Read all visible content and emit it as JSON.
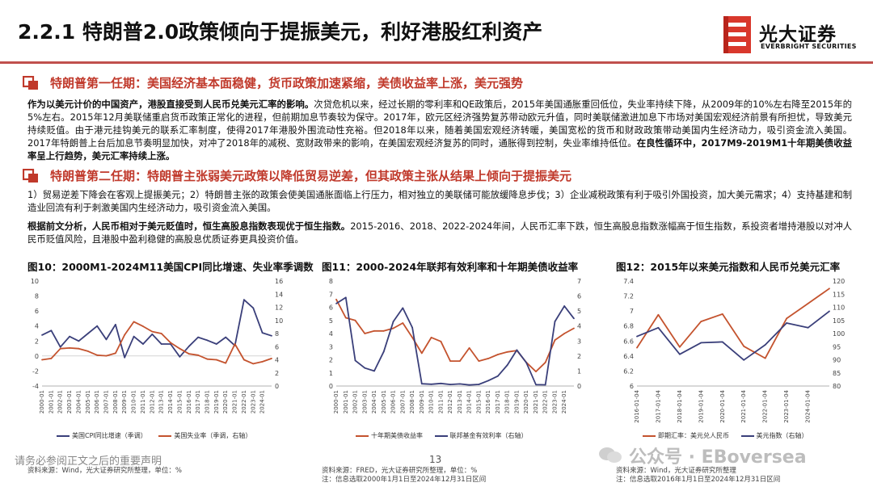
{
  "header": {
    "title": "2.2.1 特朗普2.0政策倾向于提振美元，利好港股红利资产",
    "logo_cn": "光大证券",
    "logo_en": "EVERBRIGHT SECURITIES"
  },
  "section1": {
    "heading": "特朗普第一任期：美国经济基本面稳健，货币政策加速紧缩，美债收益率上涨，美元强势",
    "para_bold1": "作为以美元计价的中国资产，港股直接受到人民币兑美元汇率的影响。",
    "para_text": "次贷危机以来，经过长期的零利率和QE政策后，2015年美国通胀重回低位，失业率持续下降，从2009年的10%左右降至2015年的5%左右。2015年12月美联储重启货币政策正常化的进程，但前期加息节奏较为保守。2017年，欧元区经济强势复苏带动欧元升值，同时美联储激进加息下市场对美国宏观经济前景有所担忧，导致美元持续贬值。由于港元挂钩美元的联系汇率制度，使得2017年港股外围流动性充裕。但2018年以来，随着美国宏观经济转暖，美国宽松的货币和财政政策带动美国内生经济动力，吸引资金流入美国。2017年特朗普上台后加息节奏明显加快，对冲了2018年的减税、宽财政带来的影响，在美国宏观经济复苏的同时，通胀得到控制，失业率维持低位。",
    "para_bold2": "在良性循环中，2017M9-2019M1十年期美债收益率呈上行趋势，美元汇率持续上涨。"
  },
  "section2": {
    "heading": "特朗普第二任期：特朗普主张弱美元政策以降低贸易逆差，但其政策主张从结果上倾向于提振美元",
    "para1": "1）贸易逆差下降会在客观上提振美元；2）特朗普主张的政策会使美国通胀面临上行压力，相对独立的美联储可能放缓降息步伐；3）企业减税政策有利于吸引外国投资，加大美元需求；4）支持基建和制造业回流有利于刺激美国内生经济动力，吸引资金流入美国。",
    "para2_bold": "根据前文分析，人民币相对于美元贬值时，恒生高股息指数表现优于恒生指数。",
    "para2_text": "2015-2016、2018、2022-2024年间，人民币汇率下跌，恒生高股息指数涨幅高于恒生指数，系投资者增持港股以对冲人民币贬值风险，且港股中盈利稳健的高股息优质证券更具投资价值。"
  },
  "footer": {
    "disclaimer": "请务必参阅正文之后的重要声明",
    "page_number": "13",
    "watermark": "公众号 · EBoversea"
  },
  "colors": {
    "accent": "#c0504d",
    "navy": "#3a3f7a",
    "orange": "#c4532e"
  },
  "chart_data": [
    {
      "type": "line",
      "title": "图10：2000M1-2024M11美国CPI同比增速、失业率季调数",
      "x": [
        "2000-01",
        "2001-01",
        "2002-01",
        "2003-01",
        "2004-01",
        "2005-01",
        "2006-01",
        "2007-01",
        "2008-01",
        "2009-01",
        "2010-01",
        "2011-01",
        "2012-01",
        "2013-01",
        "2014-01",
        "2015-01",
        "2016-01",
        "2017-01",
        "2018-01",
        "2019-01",
        "2020-01",
        "2021-01",
        "2022-01",
        "2023-01",
        "2024-01",
        "2024-11"
      ],
      "x_ticks": [
        "2000-01",
        "2001-01",
        "2002-01",
        "2003-01",
        "2004-01",
        "2005-01",
        "2006-01",
        "2007-01",
        "2008-01",
        "2009-01",
        "2010-01",
        "2011-01",
        "2012-01",
        "2013-01",
        "2014-01",
        "2015-01",
        "2016-01",
        "2017-01",
        "2018-01",
        "2019-01",
        "2020-01",
        "2021-01",
        "2022-01",
        "2023-01",
        "2024-01"
      ],
      "ylim_left": [
        -4,
        10
      ],
      "yticks_left": [
        "-4",
        "-2",
        "0",
        "2",
        "4",
        "6",
        "8",
        "10"
      ],
      "ylim_right": [
        0,
        16
      ],
      "yticks_right": [
        "0",
        "2",
        "4",
        "6",
        "8",
        "10",
        "12",
        "14",
        "16"
      ],
      "series": [
        {
          "name": "美国CPI同比增速（季调）",
          "axis": "left",
          "color": "#3a3f7a",
          "values": [
            2.8,
            3.4,
            1.2,
            2.6,
            2.0,
            3.0,
            4.0,
            2.2,
            4.2,
            -0.2,
            2.6,
            1.6,
            2.9,
            1.6,
            1.6,
            -0.1,
            1.3,
            2.5,
            2.1,
            1.6,
            2.5,
            1.4,
            7.5,
            6.4,
            3.1,
            2.7
          ]
        },
        {
          "name": "美国失业率（季调，右轴）",
          "axis": "right",
          "color": "#c4532e",
          "values": [
            4.0,
            4.2,
            5.7,
            5.8,
            5.7,
            5.3,
            4.7,
            4.6,
            5.0,
            7.8,
            9.8,
            9.1,
            8.3,
            8.0,
            6.6,
            5.7,
            4.9,
            4.7,
            4.1,
            4.0,
            3.5,
            6.4,
            4.0,
            3.4,
            3.7,
            4.2
          ]
        }
      ],
      "source": "资料来源：Wind，光大证券研究所整理，单位：%"
    },
    {
      "type": "line",
      "title": "图11：2000-2024年联邦有效利率和十年期美债收益率",
      "x": [
        "2000-01",
        "2001-01",
        "2002-01",
        "2003-01",
        "2004-01",
        "2005-01",
        "2006-01",
        "2007-01",
        "2008-01",
        "2009-01",
        "2010-01",
        "2011-01",
        "2012-01",
        "2013-01",
        "2014-01",
        "2015-01",
        "2016-01",
        "2017-01",
        "2018-01",
        "2019-01",
        "2020-01",
        "2021-01",
        "2022-01",
        "2023-01",
        "2024-01",
        "2024-12"
      ],
      "x_ticks": [
        "2000-01",
        "2001-01",
        "2002-01",
        "2003-01",
        "2004-01",
        "2005-01",
        "2006-01",
        "2007-01",
        "2008-01",
        "2009-01",
        "2010-01",
        "2011-01",
        "2012-01",
        "2013-01",
        "2014-01",
        "2015-01",
        "2016-01",
        "2017-01",
        "2018-01",
        "2019-01",
        "2020-01",
        "2021-01",
        "2022-01",
        "2023-01",
        "2024-01"
      ],
      "ylim_left": [
        0,
        8
      ],
      "yticks_left": [
        "0",
        "1",
        "2",
        "3",
        "4",
        "5",
        "6",
        "7",
        "8"
      ],
      "ylim_right": [
        0,
        7
      ],
      "yticks_right": [
        "0",
        "1",
        "2",
        "3",
        "4",
        "5",
        "6",
        "7"
      ],
      "series": [
        {
          "name": "十年期美债收益率",
          "axis": "left",
          "color": "#c4532e",
          "values": [
            6.6,
            5.2,
            5.0,
            4.0,
            4.2,
            4.2,
            4.4,
            4.8,
            3.7,
            2.5,
            3.7,
            3.4,
            1.9,
            1.9,
            2.9,
            1.9,
            2.1,
            2.4,
            2.6,
            2.7,
            1.8,
            1.1,
            1.8,
            3.5,
            4.0,
            4.4
          ]
        },
        {
          "name": "联邦基金有效利率（右轴）",
          "axis": "right",
          "color": "#3a3f7a",
          "values": [
            5.5,
            5.9,
            1.7,
            1.2,
            1.0,
            2.3,
            4.3,
            5.2,
            3.9,
            0.15,
            0.12,
            0.17,
            0.1,
            0.14,
            0.07,
            0.11,
            0.36,
            0.66,
            1.4,
            2.4,
            1.55,
            0.09,
            0.08,
            4.3,
            5.33,
            4.5
          ]
        }
      ],
      "source": "资料来源：FRED，光大证券研究所整理，单位：%",
      "note": "注：信息选取2000年1月1日至2024年12月31日区间"
    },
    {
      "type": "line",
      "title": "图12：2015年以来美元指数和人民币兑美元汇率",
      "x": [
        "2016-01-04",
        "2017-01-04",
        "2018-01-04",
        "2019-01-04",
        "2020-01-04",
        "2021-01-04",
        "2022-01-04",
        "2023-01-04",
        "2024-01-04",
        "2024-12-31"
      ],
      "x_ticks": [
        "2016-01-04",
        "2017-01-04",
        "2018-01-04",
        "2019-01-04",
        "2020-01-04",
        "2021-01-04",
        "2022-01-04",
        "2023-01-04",
        "2024-01-04"
      ],
      "ylim_left": [
        6,
        7.4
      ],
      "yticks_left": [
        "6",
        "6.2",
        "6.4",
        "6.6",
        "6.8",
        "7",
        "7.2",
        "7.4"
      ],
      "ylim_right": [
        80,
        120
      ],
      "yticks_right": [
        "80",
        "85",
        "90",
        "95",
        "100",
        "105",
        "110",
        "115",
        "120"
      ],
      "series": [
        {
          "name": "即期汇率：美元兑人民币",
          "axis": "left",
          "color": "#c4532e",
          "values": [
            6.51,
            6.95,
            6.52,
            6.86,
            6.96,
            6.53,
            6.37,
            6.9,
            7.1,
            7.3
          ]
        },
        {
          "name": "美元指数（右轴）",
          "axis": "right",
          "color": "#3a3f7a",
          "values": [
            98.9,
            102.2,
            92.1,
            96.5,
            96.8,
            89.9,
            95.7,
            104.0,
            102.2,
            108.5
          ]
        }
      ],
      "source": "资料来源：Wind，光大证券研究所整理",
      "note": "注：信息选取2016年1月1日至2024年12月31日区间"
    }
  ]
}
